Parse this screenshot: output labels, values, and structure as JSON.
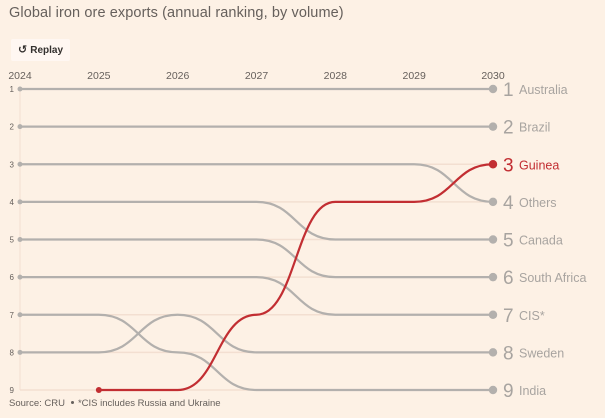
{
  "title": "Global iron ore exports (annual ranking, by volume)",
  "replay_button": {
    "label": "Replay",
    "icon": "replay-icon"
  },
  "footer": {
    "source": "Source: CRU",
    "note": "*CIS includes Russia and Ukraine"
  },
  "colors": {
    "background": "#fdf1e5",
    "line": "#b3b0ad",
    "highlight": "#c22e32",
    "text": "#66605c",
    "label": "#a8a4a0"
  },
  "chart_data": {
    "type": "line",
    "subtype": "bump",
    "title": "Global iron ore exports (annual ranking, by volume)",
    "x": [
      "2024",
      "2025",
      "2026",
      "2027",
      "2028",
      "2029",
      "2030"
    ],
    "y_ticks": [
      "1",
      "2",
      "3",
      "4",
      "5",
      "6",
      "7",
      "8",
      "9"
    ],
    "ylim": [
      1,
      9
    ],
    "y_inverted": true,
    "grid": true,
    "highlight": "Guinea",
    "series": [
      {
        "name": "Australia",
        "final_rank": "1",
        "values": [
          1,
          1,
          1,
          1,
          1,
          1,
          1
        ]
      },
      {
        "name": "Brazil",
        "final_rank": "2",
        "values": [
          2,
          2,
          2,
          2,
          2,
          2,
          2
        ]
      },
      {
        "name": "Others",
        "final_rank": "4",
        "values": [
          3,
          3,
          3,
          3,
          3,
          3,
          4
        ]
      },
      {
        "name": "Canada",
        "final_rank": "5",
        "values": [
          4,
          4,
          4,
          4,
          5,
          5,
          5
        ]
      },
      {
        "name": "South Africa",
        "final_rank": "6",
        "values": [
          5,
          5,
          5,
          5,
          6,
          6,
          6
        ]
      },
      {
        "name": "CIS*",
        "final_rank": "7",
        "values": [
          6,
          6,
          6,
          6,
          7,
          7,
          7
        ]
      },
      {
        "name": "Sweden",
        "final_rank": "8",
        "values": [
          8,
          8,
          7,
          8,
          8,
          8,
          8
        ]
      },
      {
        "name": "India",
        "final_rank": "9",
        "values": [
          7,
          7,
          8,
          9,
          9,
          9,
          9
        ]
      },
      {
        "name": "Guinea",
        "final_rank": "3",
        "values": [
          null,
          9,
          9,
          7,
          4,
          4,
          3
        ]
      }
    ],
    "source": "Source: CRU",
    "note": "*CIS includes Russia and Ukraine"
  }
}
